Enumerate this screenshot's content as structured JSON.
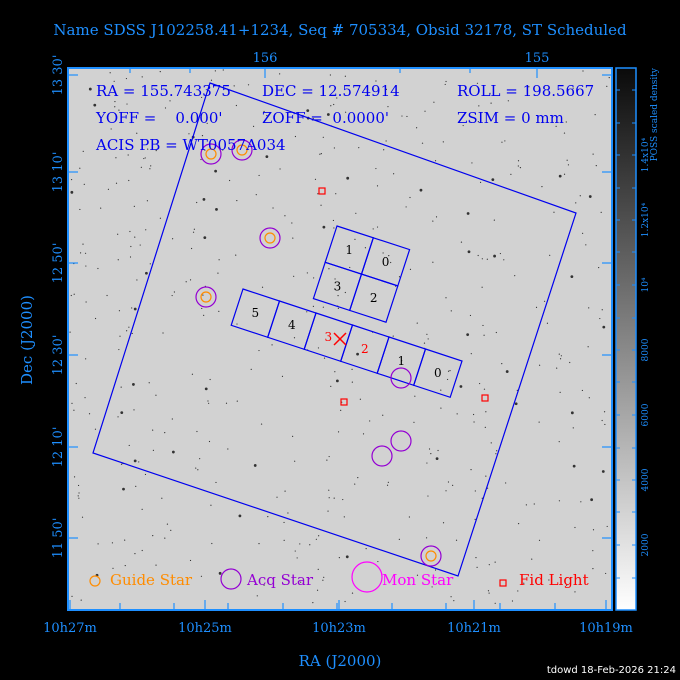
{
  "title": "Name SDSS J102258.41+1234, Seq # 705334, Obsid 32178, ST Scheduled",
  "info": {
    "ra": "RA = 155.743375",
    "dec": "DEC = 12.574914",
    "roll": "ROLL = 198.5667",
    "yoff": "YOFF =    0.000'",
    "zoff": "ZOFF =  0.0000'",
    "zsim": "ZSIM = 0 mm",
    "acis_pb": "ACIS PB = WT0057A034"
  },
  "axes": {
    "xlabel": "RA (J2000)",
    "ylabel": "Dec (J2000)",
    "top_ticks": [
      "156",
      "155"
    ],
    "bottom_ticks": [
      "10h27m",
      "10h25m",
      "10h23m",
      "10h21m",
      "10h19m"
    ],
    "left_ticks": [
      "13 30'",
      "13 10'",
      "12 50'",
      "12 30'",
      "12 10'",
      "11 50'"
    ]
  },
  "colorbar": {
    "label": "POSS scaled density",
    "ticks": [
      "2000",
      "4000",
      "6000",
      "8000",
      "10⁴",
      "1.2x10⁴",
      "1.4x10⁴"
    ]
  },
  "acis_i_chips": [
    "1",
    "0",
    "3",
    "2"
  ],
  "acis_s_chips": [
    "5",
    "4",
    "3",
    "2",
    "1",
    "0"
  ],
  "legend": {
    "guide": "Guide Star",
    "acq": "Acq Star",
    "mon": "Mon Star",
    "fid": "Fid Light"
  },
  "colors": {
    "axis": "#1e8fff",
    "overlay": "#0000ee",
    "guide": "#ff8c00",
    "acq": "#9400d3",
    "mon": "#ff00ff",
    "fid": "#ff0000"
  },
  "footer": "tdowd 18-Feb-2026 21:24"
}
